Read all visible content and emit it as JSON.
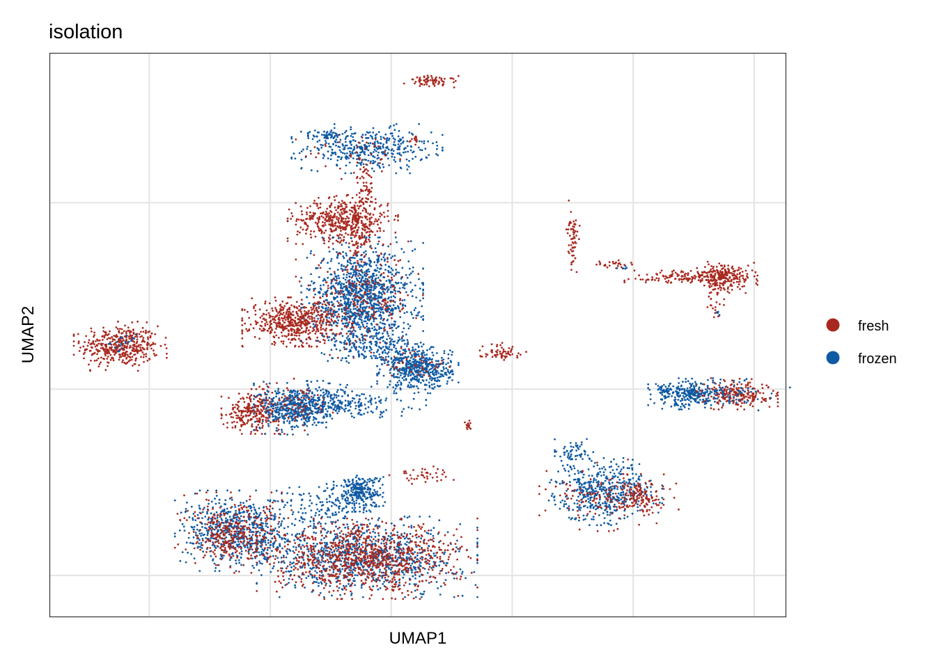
{
  "chart_data": {
    "type": "scatter",
    "title": "isolation",
    "xlabel": "UMAP1",
    "ylabel": "UMAP2",
    "xlim": [
      -14.1,
      16.3
    ],
    "ylim": [
      -12.2,
      18.0
    ],
    "x_gridlines": [
      -10,
      -5,
      0,
      5,
      10,
      15
    ],
    "y_gridlines": [
      -10,
      0,
      10
    ],
    "tick_labels_shown": false,
    "grid": true,
    "legend_position": "right",
    "legend": [
      {
        "name": "fresh",
        "color": "#A8291F"
      },
      {
        "name": "frozen",
        "color": "#0F5AA3"
      }
    ],
    "clusters": [
      {
        "series": "fresh",
        "cx": -11.2,
        "cy": 2.3,
        "sx": 0.8,
        "sy": 0.55,
        "n": 420
      },
      {
        "series": "frozen",
        "cx": -11.0,
        "cy": 2.5,
        "sx": 0.3,
        "sy": 0.2,
        "n": 20
      },
      {
        "series": "fresh",
        "cx": 1.7,
        "cy": 16.5,
        "sx": 0.5,
        "sy": 0.15,
        "n": 70
      },
      {
        "series": "fresh",
        "cx": 1.0,
        "cy": 13.4,
        "sx": 0.12,
        "sy": 0.12,
        "n": 12
      },
      {
        "series": "frozen",
        "cx": -1.0,
        "cy": 12.9,
        "sx": 1.3,
        "sy": 0.55,
        "n": 380
      },
      {
        "series": "fresh",
        "cx": -1.2,
        "cy": 12.6,
        "sx": 1.2,
        "sy": 0.6,
        "n": 40
      },
      {
        "series": "frozen",
        "cx": -2.6,
        "cy": 13.6,
        "sx": 0.35,
        "sy": 0.12,
        "n": 50
      },
      {
        "series": "fresh",
        "cx": -1.1,
        "cy": 10.7,
        "sx": 0.22,
        "sy": 0.8,
        "n": 60
      },
      {
        "series": "fresh",
        "cx": -2.0,
        "cy": 9.1,
        "sx": 0.95,
        "sy": 0.55,
        "n": 480
      },
      {
        "series": "fresh",
        "cx": -1.2,
        "cy": 7.9,
        "sx": 0.25,
        "sy": 0.4,
        "n": 40
      },
      {
        "series": "frozen",
        "cx": -1.2,
        "cy": 4.9,
        "sx": 1.05,
        "sy": 1.35,
        "n": 1200
      },
      {
        "series": "fresh",
        "cx": -1.3,
        "cy": 4.8,
        "sx": 1.1,
        "sy": 1.3,
        "n": 250
      },
      {
        "series": "fresh",
        "cx": -4.0,
        "cy": 3.6,
        "sx": 0.9,
        "sy": 0.55,
        "n": 520
      },
      {
        "series": "frozen",
        "cx": 1.1,
        "cy": 1.1,
        "sx": 0.7,
        "sy": 0.55,
        "n": 520
      },
      {
        "series": "fresh",
        "cx": 1.0,
        "cy": 1.2,
        "sx": 0.7,
        "sy": 0.5,
        "n": 40
      },
      {
        "series": "frozen",
        "cx": -0.7,
        "cy": 2.3,
        "sx": 0.8,
        "sy": 0.4,
        "n": 120
      },
      {
        "series": "fresh",
        "cx": -5.7,
        "cy": -1.2,
        "sx": 0.55,
        "sy": 0.5,
        "n": 260
      },
      {
        "series": "frozen",
        "cx": -4.0,
        "cy": -1.0,
        "sx": 0.7,
        "sy": 0.6,
        "n": 480
      },
      {
        "series": "fresh",
        "cx": -4.0,
        "cy": -0.8,
        "sx": 0.8,
        "sy": 0.6,
        "n": 80
      },
      {
        "series": "frozen",
        "cx": -2.5,
        "cy": -0.7,
        "sx": 0.7,
        "sy": 0.45,
        "n": 160
      },
      {
        "series": "frozen",
        "cx": -1.2,
        "cy": -0.8,
        "sx": 1.1,
        "sy": 0.3,
        "n": 80
      },
      {
        "series": "fresh",
        "cx": 4.5,
        "cy": 2.0,
        "sx": 0.45,
        "sy": 0.2,
        "n": 60
      },
      {
        "series": "fresh",
        "cx": 3.2,
        "cy": -2.0,
        "sx": 0.08,
        "sy": 0.15,
        "n": 14
      },
      {
        "series": "fresh",
        "cx": 1.3,
        "cy": -4.6,
        "sx": 0.6,
        "sy": 0.2,
        "n": 40
      },
      {
        "series": "frozen",
        "cx": -1.3,
        "cy": -5.5,
        "sx": 0.45,
        "sy": 0.45,
        "n": 240
      },
      {
        "series": "frozen",
        "cx": -2.5,
        "cy": -6.3,
        "sx": 1.0,
        "sy": 0.6,
        "n": 140
      },
      {
        "series": "frozen",
        "cx": -6.3,
        "cy": -7.6,
        "sx": 1.1,
        "sy": 0.9,
        "n": 650
      },
      {
        "series": "fresh",
        "cx": -6.3,
        "cy": -7.7,
        "sx": 1.1,
        "sy": 0.9,
        "n": 240
      },
      {
        "series": "fresh",
        "cx": -6.8,
        "cy": -8.0,
        "sx": 0.5,
        "sy": 0.6,
        "n": 120
      },
      {
        "series": "frozen",
        "cx": -1.0,
        "cy": -9.0,
        "sx": 1.9,
        "sy": 0.9,
        "n": 900
      },
      {
        "series": "fresh",
        "cx": -1.0,
        "cy": -9.1,
        "sx": 1.9,
        "sy": 0.9,
        "n": 950
      },
      {
        "series": "frozen",
        "cx": 8.8,
        "cy": -5.5,
        "sx": 1.0,
        "sy": 0.75,
        "n": 480
      },
      {
        "series": "fresh",
        "cx": 9.0,
        "cy": -5.7,
        "sx": 1.2,
        "sy": 0.8,
        "n": 150
      },
      {
        "series": "frozen",
        "cx": 7.6,
        "cy": -3.4,
        "sx": 0.35,
        "sy": 0.3,
        "n": 60
      },
      {
        "series": "fresh",
        "cx": 10.3,
        "cy": -5.8,
        "sx": 0.4,
        "sy": 0.4,
        "n": 100
      },
      {
        "series": "frozen",
        "cx": 12.3,
        "cy": -0.25,
        "sx": 0.7,
        "sy": 0.35,
        "n": 260
      },
      {
        "series": "fresh",
        "cx": 14.3,
        "cy": -0.25,
        "sx": 0.7,
        "sy": 0.35,
        "n": 220
      },
      {
        "series": "frozen",
        "cx": 13.6,
        "cy": -0.3,
        "sx": 1.2,
        "sy": 0.35,
        "n": 90
      },
      {
        "series": "fresh",
        "cx": 7.5,
        "cy": 8.2,
        "sx": 0.12,
        "sy": 0.8,
        "n": 60
      },
      {
        "series": "fresh",
        "cx": 9.2,
        "cy": 6.7,
        "sx": 0.35,
        "sy": 0.1,
        "n": 25
      },
      {
        "series": "frozen",
        "cx": 9.6,
        "cy": 6.5,
        "sx": 0.15,
        "sy": 0.1,
        "n": 5
      },
      {
        "series": "fresh",
        "cx": 13.7,
        "cy": 6.0,
        "sx": 0.6,
        "sy": 0.35,
        "n": 260
      },
      {
        "series": "fresh",
        "cx": 11.8,
        "cy": 6.0,
        "sx": 0.9,
        "sy": 0.15,
        "n": 90
      },
      {
        "series": "fresh",
        "cx": 13.4,
        "cy": 4.5,
        "sx": 0.15,
        "sy": 0.5,
        "n": 25
      },
      {
        "series": "frozen",
        "cx": 13.5,
        "cy": 4.1,
        "sx": 0.1,
        "sy": 0.1,
        "n": 4
      }
    ]
  }
}
